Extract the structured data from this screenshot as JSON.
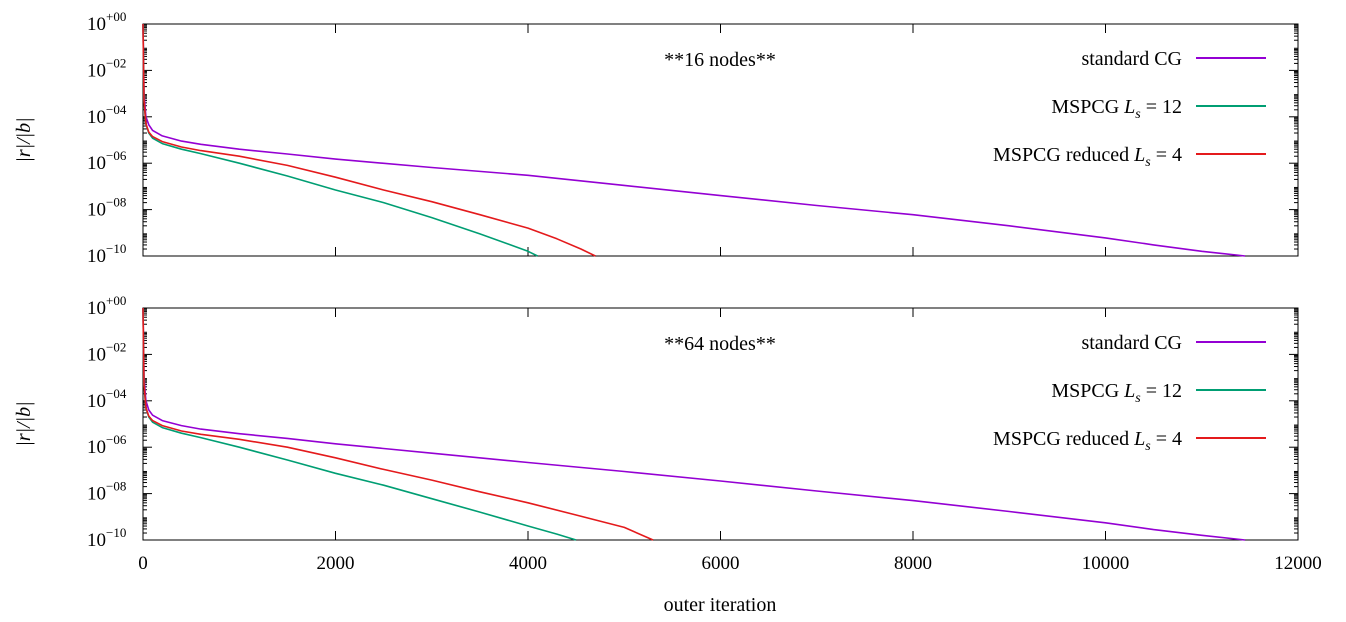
{
  "chart_data": [
    {
      "type": "line",
      "annotation": "**16 nodes**",
      "ylabel": "|r|/|b|",
      "xlabel": "",
      "yscale": "log",
      "xlim": [
        0,
        12000
      ],
      "ylim": [
        1e-10,
        1
      ],
      "ytick_labels": [
        {
          "base": "10",
          "exp": "+00"
        },
        {
          "base": "10",
          "exp": "−02"
        },
        {
          "base": "10",
          "exp": "−04"
        },
        {
          "base": "10",
          "exp": "−06"
        },
        {
          "base": "10",
          "exp": "−08"
        },
        {
          "base": "10",
          "exp": "−10"
        }
      ],
      "legend_position": "top-right",
      "series": [
        {
          "name": "standard CG",
          "color": "#9400d3",
          "x": [
            0,
            10,
            30,
            60,
            100,
            200,
            400,
            600,
            1000,
            1500,
            2000,
            3000,
            4000,
            5000,
            6000,
            7000,
            8000,
            9000,
            10000,
            10500,
            11000,
            11450
          ],
          "y": [
            1,
            0.001,
            0.0001,
            4.5e-05,
            2.6e-05,
            1.5e-05,
            9e-06,
            6.5e-06,
            4e-06,
            2.5e-06,
            1.5e-06,
            6.5e-07,
            3e-07,
            1.1e-07,
            4e-08,
            1.5e-08,
            6e-09,
            2e-09,
            6e-10,
            3e-10,
            1.6e-10,
            1e-10
          ]
        },
        {
          "name": "MSPCG L_s = 12",
          "label_text": "MSPCG",
          "label_math": "12",
          "color": "#009e73",
          "x": [
            0,
            10,
            30,
            60,
            100,
            200,
            400,
            600,
            1000,
            1500,
            2000,
            2500,
            3000,
            3500,
            3800,
            4000,
            4100
          ],
          "y": [
            1,
            0.0005,
            5e-05,
            2e-05,
            1.2e-05,
            7e-06,
            4e-06,
            2.6e-06,
            1e-06,
            2.8e-07,
            7e-08,
            2e-08,
            4.5e-09,
            9e-10,
            3.2e-10,
            1.6e-10,
            1e-10
          ]
        },
        {
          "name": "MSPCG reduced L_s = 4",
          "label_text": "MSPCG reduced",
          "label_math": "4",
          "color": "#e41a1c",
          "x": [
            0,
            10,
            30,
            60,
            100,
            200,
            400,
            600,
            1000,
            1500,
            2000,
            2500,
            3000,
            3500,
            4000,
            4300,
            4550,
            4700
          ],
          "y": [
            1,
            0.0005,
            5e-05,
            2.2e-05,
            1.4e-05,
            8.5e-06,
            5e-06,
            3.5e-06,
            2e-06,
            8e-07,
            2.5e-07,
            7e-08,
            2.2e-08,
            6e-09,
            1.6e-09,
            5.5e-10,
            2e-10,
            1e-10
          ]
        }
      ]
    },
    {
      "type": "line",
      "annotation": "**64 nodes**",
      "ylabel": "|r|/|b|",
      "xlabel": "outer iteration",
      "yscale": "log",
      "xlim": [
        0,
        12000
      ],
      "ylim": [
        1e-10,
        1
      ],
      "xtick_labels": [
        "0",
        "2000",
        "4000",
        "6000",
        "8000",
        "10000",
        "12000"
      ],
      "xticks": [
        0,
        2000,
        4000,
        6000,
        8000,
        10000,
        12000
      ],
      "ytick_labels": [
        {
          "base": "10",
          "exp": "+00"
        },
        {
          "base": "10",
          "exp": "−02"
        },
        {
          "base": "10",
          "exp": "−04"
        },
        {
          "base": "10",
          "exp": "−06"
        },
        {
          "base": "10",
          "exp": "−08"
        },
        {
          "base": "10",
          "exp": "−10"
        }
      ],
      "legend_position": "top-right",
      "series": [
        {
          "name": "standard CG",
          "color": "#9400d3",
          "x": [
            0,
            10,
            30,
            60,
            100,
            200,
            400,
            600,
            1000,
            1500,
            2000,
            3000,
            4000,
            5000,
            6000,
            7000,
            8000,
            9000,
            10000,
            10500,
            11000,
            11450
          ],
          "y": [
            1,
            0.001,
            0.0001,
            4e-05,
            2.4e-05,
            1.4e-05,
            8.5e-06,
            6e-06,
            3.8e-06,
            2.4e-06,
            1.4e-06,
            5.5e-07,
            2.2e-07,
            9e-08,
            3.5e-08,
            1.3e-08,
            5e-09,
            1.7e-09,
            5.5e-10,
            2.8e-10,
            1.6e-10,
            1e-10
          ]
        },
        {
          "name": "MSPCG L_s = 12",
          "label_text": "MSPCG",
          "label_math": "12",
          "color": "#009e73",
          "x": [
            0,
            10,
            30,
            60,
            100,
            200,
            400,
            600,
            1000,
            1500,
            2000,
            2500,
            3000,
            3500,
            4000,
            4300,
            4500
          ],
          "y": [
            1,
            0.0005,
            5e-05,
            2e-05,
            1.2e-05,
            7e-06,
            4e-06,
            2.6e-06,
            1e-06,
            2.8e-07,
            7.5e-08,
            2.3e-08,
            6e-09,
            1.6e-09,
            4e-10,
            1.8e-10,
            1e-10
          ]
        },
        {
          "name": "MSPCG reduced L_s = 4",
          "label_text": "MSPCG reduced",
          "label_math": "4",
          "color": "#e41a1c",
          "x": [
            0,
            10,
            30,
            60,
            100,
            200,
            400,
            600,
            1000,
            1500,
            2000,
            2500,
            3000,
            3500,
            4000,
            4500,
            5000,
            5300
          ],
          "y": [
            1,
            0.0005,
            5e-05,
            2.2e-05,
            1.4e-05,
            8.5e-06,
            5e-06,
            3.6e-06,
            2.2e-06,
            1e-06,
            3.5e-07,
            1.1e-07,
            3.8e-08,
            1.2e-08,
            4e-09,
            1.2e-09,
            3.5e-10,
            1e-10
          ]
        }
      ]
    }
  ]
}
